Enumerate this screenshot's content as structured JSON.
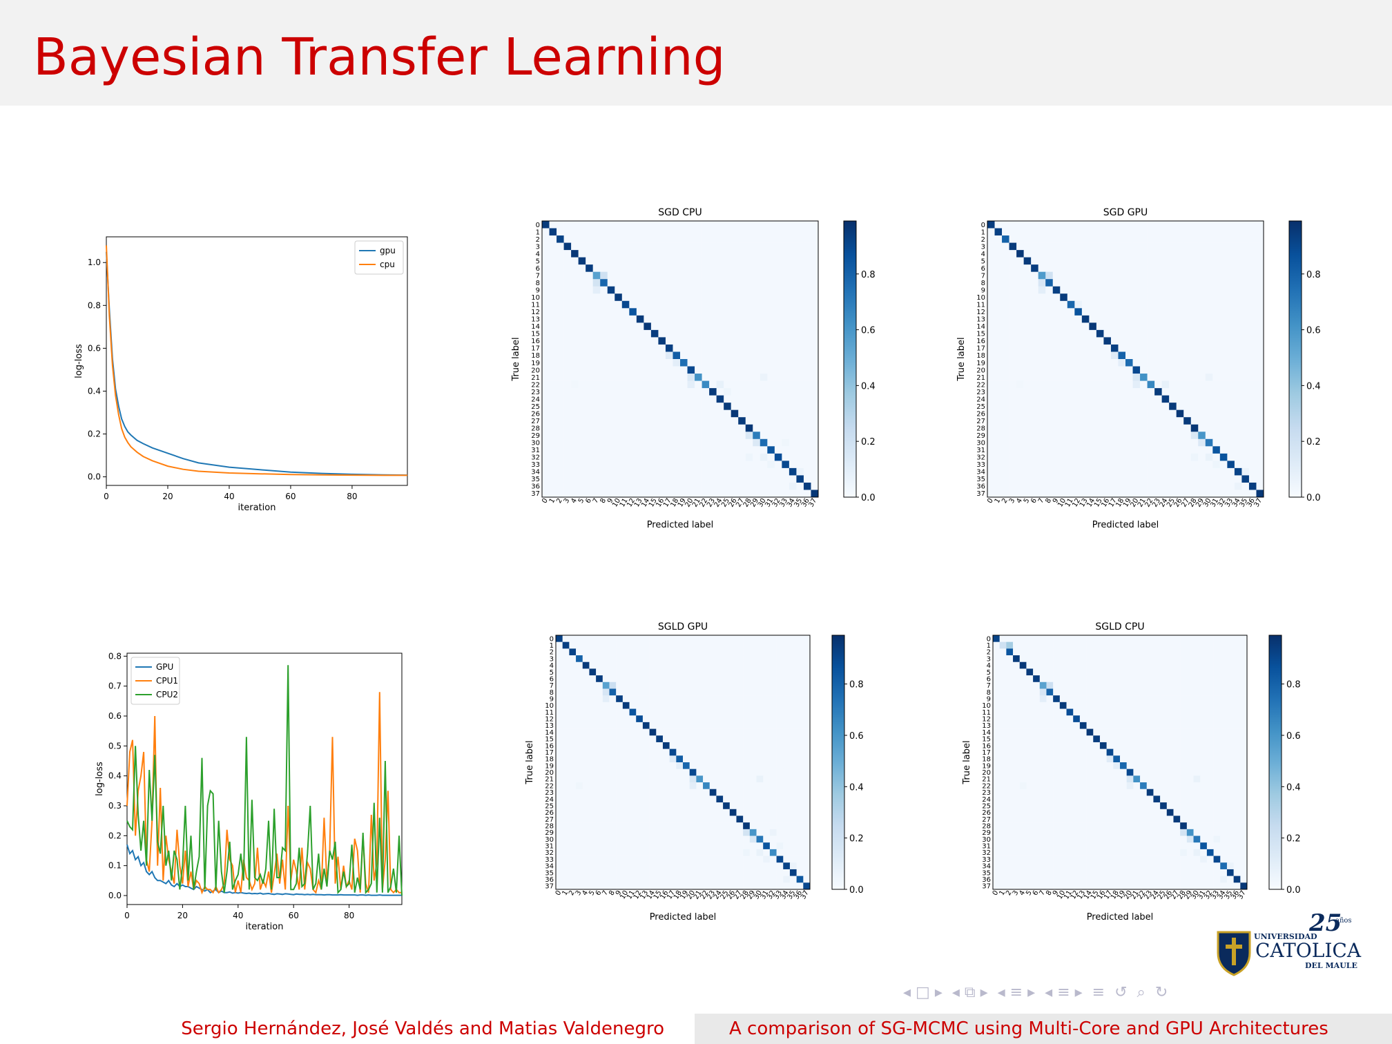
{
  "slide": {
    "title": "Bayesian Transfer Learning",
    "footer_authors": "Sergio Hernández, José Valdés and Matias Valdenegro",
    "footer_title": "A comparison of SG-MCMC using Multi-Core and GPU Architectures"
  },
  "logo": {
    "line1": "UNIVERSIDAD",
    "line2": "CATOLICA",
    "line3": "DEL MAULE",
    "badge": "25",
    "badge_suffix": "años"
  },
  "nav_icons": [
    "nav-first-icon",
    "nav-frame-icon",
    "nav-next-icon",
    "nav-section-icon",
    "nav-subsection-icon",
    "nav-toc-icon",
    "search-icon",
    "undo-icon"
  ],
  "colors": {
    "title": "#cc0000",
    "gpu": "#1f77b4",
    "cpu": "#ff7f0e",
    "cpu2": "#2ca02c",
    "blue_dark": "#08306b",
    "blue_light": "#f7fbff"
  },
  "chart_data": [
    {
      "type": "line",
      "xlabel": "iteration",
      "ylabel": "log-loss",
      "xlim": [
        0,
        98
      ],
      "ylim": [
        -0.04,
        1.12
      ],
      "xticks": [
        0,
        20,
        40,
        60,
        80
      ],
      "yticks": [
        0.0,
        0.2,
        0.4,
        0.6,
        0.8,
        1.0
      ],
      "legend_position": "top-right",
      "x": [
        0,
        1,
        2,
        3,
        4,
        5,
        6,
        7,
        8,
        10,
        12,
        15,
        20,
        25,
        30,
        40,
        50,
        60,
        70,
        80,
        90,
        98
      ],
      "series": [
        {
          "name": "gpu",
          "values": [
            1.05,
            0.78,
            0.55,
            0.41,
            0.33,
            0.27,
            0.235,
            0.21,
            0.195,
            0.17,
            0.155,
            0.135,
            0.11,
            0.085,
            0.065,
            0.045,
            0.033,
            0.022,
            0.016,
            0.012,
            0.009,
            0.008
          ]
        },
        {
          "name": "cpu",
          "values": [
            1.08,
            0.75,
            0.52,
            0.38,
            0.29,
            0.225,
            0.185,
            0.16,
            0.14,
            0.115,
            0.095,
            0.075,
            0.05,
            0.035,
            0.026,
            0.018,
            0.014,
            0.011,
            0.009,
            0.008,
            0.007,
            0.007
          ]
        }
      ]
    },
    {
      "type": "line",
      "xlabel": "iteration",
      "ylabel": "log-loss",
      "xlim": [
        0,
        99
      ],
      "ylim": [
        -0.03,
        0.81
      ],
      "xticks": [
        0,
        20,
        40,
        60,
        80
      ],
      "yticks": [
        0.0,
        0.1,
        0.2,
        0.3,
        0.4,
        0.5,
        0.6,
        0.7,
        0.8
      ],
      "legend_position": "top-left",
      "x": [
        0,
        1,
        2,
        3,
        4,
        5,
        6,
        7,
        8,
        9,
        10,
        11,
        12,
        13,
        14,
        15,
        16,
        17,
        18,
        19,
        20,
        21,
        22,
        23,
        24,
        25,
        26,
        27,
        28,
        29,
        30,
        31,
        32,
        33,
        34,
        35,
        36,
        37,
        38,
        39,
        40,
        41,
        42,
        43,
        44,
        45,
        46,
        47,
        48,
        49,
        50,
        51,
        52,
        53,
        54,
        55,
        56,
        57,
        58,
        59,
        60,
        61,
        62,
        63,
        64,
        65,
        66,
        67,
        68,
        69,
        70,
        71,
        72,
        73,
        74,
        75,
        76,
        77,
        78,
        79,
        80,
        81,
        82,
        83,
        84,
        85,
        86,
        87,
        88,
        89,
        90,
        91,
        92,
        93,
        94,
        95,
        96,
        97,
        98,
        99
      ],
      "series": [
        {
          "name": "GPU",
          "values": [
            0.17,
            0.14,
            0.15,
            0.12,
            0.13,
            0.1,
            0.11,
            0.08,
            0.07,
            0.08,
            0.06,
            0.05,
            0.05,
            0.045,
            0.04,
            0.05,
            0.035,
            0.03,
            0.04,
            0.03,
            0.035,
            0.03,
            0.03,
            0.025,
            0.02,
            0.03,
            0.025,
            0.02,
            0.015,
            0.02,
            0.01,
            0.015,
            0.02,
            0.01,
            0.015,
            0.01,
            0.01,
            0.012,
            0.008,
            0.01,
            0.008,
            0.01,
            0.008,
            0.007,
            0.008,
            0.006,
            0.007,
            0.006,
            0.008,
            0.005,
            0.006,
            0.007,
            0.005,
            0.004,
            0.006,
            0.005,
            0.004,
            0.006,
            0.005,
            0.004,
            0.003,
            0.005,
            0.004,
            0.004,
            0.003,
            0.004,
            0.003,
            0.004,
            0.003,
            0.003,
            0.003,
            0.002,
            0.003,
            0.003,
            0.002,
            0.002,
            0.002,
            0.003,
            0.002,
            0.002,
            0.002,
            0.002,
            0.002,
            0.001,
            0.002,
            0.002,
            0.001,
            0.002,
            0.001,
            0.001,
            0.001,
            0.002,
            0.001,
            0.001,
            0.001,
            0.001,
            0.001,
            0.001,
            0.001,
            0.001
          ]
        },
        {
          "name": "CPU1",
          "values": [
            0.3,
            0.48,
            0.52,
            0.2,
            0.35,
            0.4,
            0.48,
            0.12,
            0.08,
            0.25,
            0.6,
            0.1,
            0.36,
            0.05,
            0.2,
            0.12,
            0.08,
            0.04,
            0.22,
            0.1,
            0.04,
            0.15,
            0.03,
            0.08,
            0.02,
            0.05,
            0.04,
            0.01,
            0.03,
            0.02,
            0.02,
            0.01,
            0.03,
            0.01,
            0.02,
            0.04,
            0.22,
            0.12,
            0.1,
            0.01,
            0.05,
            0.01,
            0.12,
            0.06,
            0.05,
            0.02,
            0.04,
            0.16,
            0.02,
            0.05,
            0.03,
            0.08,
            0.01,
            0.07,
            0.14,
            0.04,
            0.12,
            0.02,
            0.3,
            0.05,
            0.12,
            0.08,
            0.02,
            0.16,
            0.02,
            0.11,
            0.09,
            0.02,
            0.01,
            0.05,
            0.02,
            0.26,
            0.04,
            0.15,
            0.53,
            0.04,
            0.13,
            0.02,
            0.1,
            0.03,
            0.05,
            0.02,
            0.19,
            0.15,
            0.01,
            0.2,
            0.04,
            0.01,
            0.27,
            0.05,
            0.11,
            0.68,
            0.02,
            0.12,
            0.35,
            0.02,
            0.01,
            0.02,
            0.01,
            0.01
          ]
        },
        {
          "name": "CPU2",
          "values": [
            0.25,
            0.23,
            0.22,
            0.5,
            0.27,
            0.15,
            0.25,
            0.1,
            0.42,
            0.25,
            0.47,
            0.18,
            0.14,
            0.3,
            0.1,
            0.15,
            0.05,
            0.15,
            0.12,
            0.02,
            0.1,
            0.3,
            0.05,
            0.2,
            0.02,
            0.08,
            0.13,
            0.46,
            0.02,
            0.3,
            0.35,
            0.34,
            0.02,
            0.25,
            0.08,
            0.01,
            0.08,
            0.18,
            0.02,
            0.05,
            0.07,
            0.14,
            0.05,
            0.53,
            0.02,
            0.32,
            0.06,
            0.05,
            0.07,
            0.04,
            0.09,
            0.25,
            0.02,
            0.29,
            0.06,
            0.06,
            0.16,
            0.15,
            0.77,
            0.02,
            0.02,
            0.04,
            0.16,
            0.03,
            0.04,
            0.14,
            0.3,
            0.02,
            0.04,
            0.14,
            0.02,
            0.09,
            0.03,
            0.15,
            0.12,
            0.18,
            0.01,
            0.02,
            0.08,
            0.03,
            0.04,
            0.17,
            0.01,
            0.06,
            0.02,
            0.21,
            0.01,
            0.02,
            0.04,
            0.31,
            0.01,
            0.26,
            0.01,
            0.45,
            0.01,
            0.03,
            0.09,
            0.01,
            0.2,
            0.0
          ]
        }
      ]
    },
    {
      "type": "heatmap",
      "title": "SGD CPU",
      "xlabel": "Predicted label",
      "ylabel": "True label",
      "n_classes": 38,
      "colorbar_ticks": [
        0.0,
        0.2,
        0.4,
        0.6,
        0.8
      ],
      "colormap": "Blues",
      "vmin": 0.0,
      "vmax": 0.99,
      "diagonal": [
        0.95,
        0.94,
        0.92,
        0.95,
        0.96,
        0.95,
        0.94,
        0.55,
        0.78,
        0.93,
        0.95,
        0.9,
        0.85,
        0.95,
        0.96,
        0.94,
        0.95,
        0.93,
        0.82,
        0.75,
        0.9,
        0.62,
        0.65,
        0.95,
        0.94,
        0.95,
        0.96,
        0.95,
        0.96,
        0.7,
        0.76,
        0.85,
        0.88,
        0.9,
        0.92,
        0.93,
        0.94,
        0.96
      ],
      "off_diagonal": [
        [
          7,
          8,
          0.2
        ],
        [
          8,
          7,
          0.18
        ],
        [
          9,
          7,
          0.1
        ],
        [
          18,
          17,
          0.12
        ],
        [
          19,
          18,
          0.1
        ],
        [
          21,
          20,
          0.15
        ],
        [
          22,
          20,
          0.1
        ],
        [
          22,
          24,
          0.08
        ],
        [
          21,
          30,
          0.06
        ],
        [
          22,
          4,
          0.03
        ],
        [
          29,
          28,
          0.15
        ],
        [
          30,
          29,
          0.14
        ],
        [
          32,
          28,
          0.05
        ],
        [
          32,
          30,
          0.07
        ],
        [
          33,
          31,
          0.05
        ],
        [
          34,
          35,
          0.06
        ],
        [
          36,
          34,
          0.06
        ],
        [
          23,
          25,
          0.05
        ],
        [
          30,
          33,
          0.04
        ]
      ]
    },
    {
      "type": "heatmap",
      "title": "SGD GPU",
      "xlabel": "Predicted label",
      "ylabel": "True label",
      "n_classes": 38,
      "colorbar_ticks": [
        0.0,
        0.2,
        0.4,
        0.6,
        0.8
      ],
      "colormap": "Blues",
      "vmin": 0.0,
      "vmax": 0.99,
      "diagonal": [
        0.94,
        0.93,
        0.8,
        0.95,
        0.96,
        0.95,
        0.94,
        0.58,
        0.8,
        0.93,
        0.95,
        0.78,
        0.86,
        0.95,
        0.96,
        0.94,
        0.95,
        0.93,
        0.8,
        0.76,
        0.9,
        0.62,
        0.66,
        0.95,
        0.94,
        0.95,
        0.96,
        0.95,
        0.96,
        0.6,
        0.72,
        0.85,
        0.86,
        0.9,
        0.92,
        0.93,
        0.94,
        0.96
      ],
      "off_diagonal": [
        [
          7,
          8,
          0.2
        ],
        [
          8,
          7,
          0.16
        ],
        [
          9,
          7,
          0.1
        ],
        [
          18,
          17,
          0.12
        ],
        [
          19,
          18,
          0.1
        ],
        [
          21,
          20,
          0.15
        ],
        [
          22,
          20,
          0.1
        ],
        [
          22,
          24,
          0.08
        ],
        [
          21,
          30,
          0.06
        ],
        [
          22,
          4,
          0.03
        ],
        [
          29,
          28,
          0.15
        ],
        [
          30,
          29,
          0.14
        ],
        [
          32,
          28,
          0.05
        ],
        [
          32,
          30,
          0.07
        ],
        [
          33,
          31,
          0.05
        ],
        [
          34,
          35,
          0.06
        ],
        [
          36,
          34,
          0.06
        ],
        [
          11,
          12,
          0.06
        ]
      ]
    },
    {
      "type": "heatmap",
      "title": "SGLD GPU",
      "xlabel": "Predicted label",
      "ylabel": "True label",
      "n_classes": 38,
      "colorbar_ticks": [
        0.0,
        0.2,
        0.4,
        0.6,
        0.8
      ],
      "colormap": "Blues",
      "vmin": 0.0,
      "vmax": 0.99,
      "diagonal": [
        0.93,
        0.93,
        0.92,
        0.8,
        0.95,
        0.95,
        0.94,
        0.55,
        0.8,
        0.93,
        0.95,
        0.85,
        0.88,
        0.95,
        0.96,
        0.94,
        0.95,
        0.9,
        0.82,
        0.78,
        0.9,
        0.6,
        0.66,
        0.95,
        0.94,
        0.95,
        0.96,
        0.95,
        0.96,
        0.6,
        0.72,
        0.85,
        0.64,
        0.9,
        0.92,
        0.93,
        0.84,
        0.9
      ],
      "off_diagonal": [
        [
          7,
          8,
          0.22
        ],
        [
          8,
          7,
          0.16
        ],
        [
          9,
          7,
          0.1
        ],
        [
          18,
          17,
          0.12
        ],
        [
          19,
          18,
          0.1
        ],
        [
          21,
          20,
          0.15
        ],
        [
          22,
          20,
          0.1
        ],
        [
          22,
          3,
          0.04
        ],
        [
          21,
          30,
          0.07
        ],
        [
          29,
          28,
          0.18
        ],
        [
          30,
          29,
          0.15
        ],
        [
          32,
          28,
          0.05
        ],
        [
          32,
          30,
          0.07
        ],
        [
          33,
          31,
          0.06
        ],
        [
          34,
          35,
          0.06
        ],
        [
          36,
          34,
          0.06
        ],
        [
          31,
          33,
          0.05
        ],
        [
          29,
          32,
          0.06
        ]
      ]
    },
    {
      "type": "heatmap",
      "title": "SGLD CPU",
      "xlabel": "Predicted label",
      "ylabel": "True label",
      "n_classes": 38,
      "colorbar_ticks": [
        0.0,
        0.2,
        0.4,
        0.6,
        0.8
      ],
      "colormap": "Blues",
      "vmin": 0.0,
      "vmax": 0.99,
      "diagonal": [
        0.92,
        0.2,
        0.85,
        0.95,
        0.96,
        0.95,
        0.94,
        0.55,
        0.8,
        0.93,
        0.95,
        0.88,
        0.88,
        0.95,
        0.96,
        0.94,
        0.95,
        0.9,
        0.82,
        0.78,
        0.9,
        0.62,
        0.7,
        0.95,
        0.94,
        0.95,
        0.96,
        0.95,
        0.96,
        0.62,
        0.72,
        0.85,
        0.86,
        0.9,
        0.76,
        0.93,
        0.94,
        0.96
      ],
      "off_diagonal": [
        [
          1,
          2,
          0.35
        ],
        [
          7,
          8,
          0.22
        ],
        [
          8,
          7,
          0.16
        ],
        [
          9,
          7,
          0.1
        ],
        [
          18,
          17,
          0.12
        ],
        [
          19,
          18,
          0.1
        ],
        [
          21,
          20,
          0.15
        ],
        [
          22,
          20,
          0.08
        ],
        [
          22,
          4,
          0.04
        ],
        [
          21,
          30,
          0.07
        ],
        [
          29,
          28,
          0.18
        ],
        [
          30,
          29,
          0.15
        ],
        [
          32,
          28,
          0.05
        ],
        [
          32,
          30,
          0.07
        ],
        [
          33,
          31,
          0.06
        ],
        [
          34,
          35,
          0.06
        ],
        [
          36,
          34,
          0.06
        ],
        [
          30,
          33,
          0.05
        ]
      ]
    }
  ]
}
